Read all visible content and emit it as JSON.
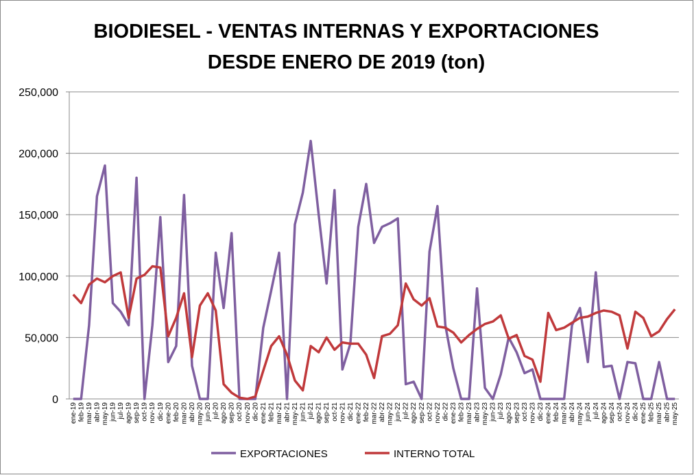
{
  "chart_data": {
    "type": "line",
    "title": [
      "BIODIESEL - VENTAS INTERNAS Y EXPORTACIONES",
      "DESDE ENERO DE 2019 (ton)"
    ],
    "categories": [
      "ene-19",
      "feb-19",
      "mar-19",
      "abr-19",
      "may-19",
      "jun-19",
      "jul-19",
      "ago-19",
      "sep-19",
      "oct-19",
      "nov-19",
      "dic-19",
      "ene-20",
      "feb-20",
      "mar-20",
      "abr-20",
      "may-20",
      "jun-20",
      "jul-20",
      "ago-20",
      "sep-20",
      "oct-20",
      "nov-20",
      "dic-20",
      "ene-21",
      "feb-21",
      "mar-21",
      "abr-21",
      "may-21",
      "jun-21",
      "jul-21",
      "ago-21",
      "sep-21",
      "oct-21",
      "nov-21",
      "dic-21",
      "ene-22",
      "feb-22",
      "mar-22",
      "abr-22",
      "may-22",
      "jun-22",
      "jul-22",
      "ago-22",
      "sep-22",
      "oct-22",
      "nov-22",
      "dic-22",
      "ene-23",
      "feb-23",
      "mar-23",
      "abr-23",
      "may-23",
      "jun-23",
      "jul-23",
      "ago-23",
      "sep-23",
      "oct-23",
      "nov-23",
      "dic-23",
      "ene-24",
      "feb-24",
      "mar-24",
      "abr-24",
      "may-24",
      "jun-24",
      "jul-24",
      "ago-24",
      "sep-24",
      "oct-24",
      "nov-24",
      "dic-24",
      "ene-25",
      "feb-25",
      "mar-25",
      "abr-25",
      "may-25"
    ],
    "series": [
      {
        "name": "EXPORTACIONES",
        "color": "#7f5fa0",
        "values": [
          0,
          0,
          60000,
          165000,
          190000,
          78000,
          71000,
          60000,
          180000,
          0,
          60000,
          148000,
          30000,
          43000,
          166000,
          27000,
          0,
          0,
          119000,
          74000,
          135000,
          0,
          0,
          0,
          58000,
          88000,
          119000,
          0,
          142000,
          168000,
          210000,
          150000,
          94000,
          170000,
          24000,
          45000,
          140000,
          175000,
          127000,
          140000,
          143000,
          147000,
          12000,
          14000,
          0,
          120000,
          157000,
          60000,
          25000,
          0,
          0,
          90000,
          9000,
          0,
          20000,
          50000,
          38000,
          21000,
          24000,
          0,
          0,
          0,
          0,
          60000,
          74000,
          30000,
          103000,
          26000,
          27000,
          0,
          30000,
          29000,
          0,
          0,
          30000,
          0,
          0
        ]
      },
      {
        "name": "INTERNO TOTAL",
        "color": "#c0393b",
        "values": [
          85000,
          78000,
          93000,
          98000,
          95000,
          100000,
          103000,
          66000,
          98000,
          101000,
          108000,
          107000,
          51000,
          66000,
          86000,
          34000,
          76000,
          86000,
          72000,
          12000,
          5000,
          1000,
          0,
          2000,
          23000,
          43000,
          51000,
          36000,
          15000,
          7000,
          43000,
          38000,
          50000,
          40000,
          46000,
          45000,
          45000,
          36000,
          17000,
          51000,
          53000,
          60000,
          94000,
          81000,
          76000,
          82000,
          59000,
          58000,
          54000,
          46000,
          52000,
          57000,
          61000,
          63000,
          68000,
          49000,
          52000,
          35000,
          32000,
          14000,
          70000,
          56000,
          58000,
          62000,
          66000,
          67000,
          70000,
          72000,
          71000,
          68000,
          41000,
          71000,
          66000,
          51000,
          55000,
          65000,
          73000
        ]
      }
    ],
    "ylim": [
      0,
      250000
    ],
    "yticks": [
      0,
      {
        "value": 50000,
        "label": "50,000"
      },
      {
        "value": 100000,
        "label": "100,000"
      },
      {
        "value": 150000,
        "label": "150,000"
      },
      {
        "value": 200000,
        "label": "200,000"
      },
      {
        "value": 250000,
        "label": "250,000"
      }
    ],
    "grid": true,
    "legend": "bottom"
  }
}
